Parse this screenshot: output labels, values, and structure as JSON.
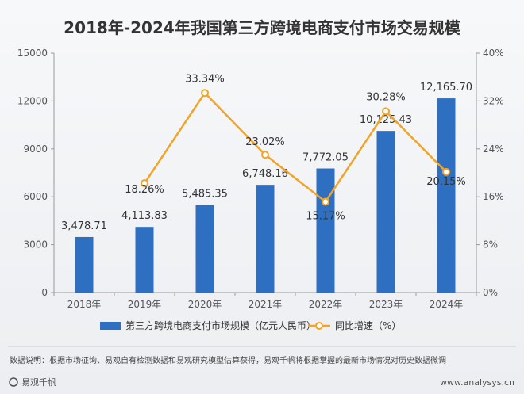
{
  "chart_data": {
    "type": "bar+line",
    "title": "2018年-2024年我国第三方跨境电商支付市场交易规模",
    "categories": [
      "2018年",
      "2019年",
      "2020年",
      "2021年",
      "2022年",
      "2023年",
      "2024年"
    ],
    "series": [
      {
        "name": "第三方跨境电商支付市场规模（亿元人民币）",
        "type": "bar",
        "axis": "left",
        "color": "#2f6fc1",
        "values": [
          3478.71,
          4113.83,
          5485.35,
          6748.16,
          7772.05,
          10125.43,
          12165.7
        ],
        "labels": [
          "3,478.71",
          "4,113.83",
          "5,485.35",
          "6,748.16",
          "7,772.05",
          "10,125.43",
          "12,165.70"
        ]
      },
      {
        "name": "同比增速（%）",
        "type": "line",
        "axis": "right",
        "color": "#f0a428",
        "x": [
          "2019年",
          "2020年",
          "2021年",
          "2022年",
          "2023年",
          "2024年"
        ],
        "values": [
          18.26,
          33.34,
          23.02,
          15.17,
          30.28,
          20.15
        ],
        "labels": [
          "18.26%",
          "33.34%",
          "23.02%",
          "15.17%",
          "30.28%",
          "20.15%"
        ]
      }
    ],
    "y_left": {
      "ylim": [
        0,
        15000
      ],
      "ticks": [
        "0",
        "3000",
        "6000",
        "9000",
        "12000",
        "15000"
      ]
    },
    "y_right": {
      "ylim": [
        0,
        40
      ],
      "ticks": [
        "0%",
        "8%",
        "16%",
        "24%",
        "32%",
        "40%"
      ]
    },
    "grid": false,
    "legend_position": "bottom"
  },
  "footer": {
    "note": "数据说明：根据市场征询、易观自有检测数据和易观研究模型估算获得，易观千帆将根据掌握的最新市场情况对历史数据微调",
    "brand": "易观千帆",
    "url": "www.analysys.cn"
  }
}
